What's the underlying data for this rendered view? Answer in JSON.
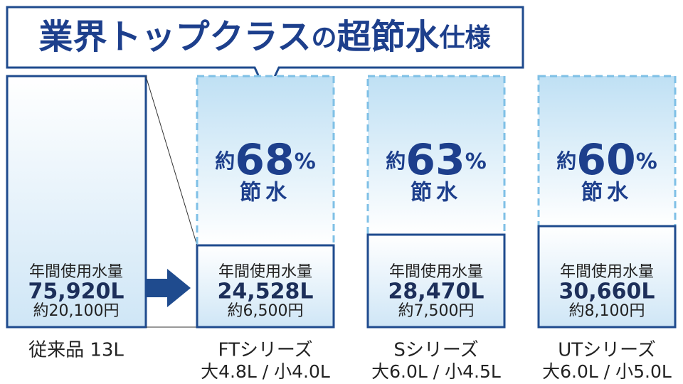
{
  "header": {
    "title_parts": [
      "業界トップクラス",
      "の",
      "超節水",
      "仕様"
    ]
  },
  "conventional": {
    "usage_label": "年間使用水量",
    "usage": "75,920L",
    "cost": "約20,100円",
    "name": "従来品 13L"
  },
  "products": [
    {
      "saving_prefix": "約",
      "saving": "68",
      "saving_unit": "%",
      "saving_label": "節水",
      "usage_label": "年間使用水量",
      "usage": "24,528L",
      "cost": "約6,500円",
      "name": "FTシリーズ",
      "flush": "大4.8L / 小4.0L"
    },
    {
      "saving_prefix": "約",
      "saving": "63",
      "saving_unit": "%",
      "saving_label": "節水",
      "usage_label": "年間使用水量",
      "usage": "28,470L",
      "cost": "約7,500円",
      "name": "Sシリーズ",
      "flush": "大6.0L / 小4.5L"
    },
    {
      "saving_prefix": "約",
      "saving": "60",
      "saving_unit": "%",
      "saving_label": "節水",
      "usage_label": "年間使用水量",
      "usage": "30,660L",
      "cost": "約8,100円",
      "name": "UTシリーズ",
      "flush": "大6.0L / 小5.0L"
    }
  ]
}
